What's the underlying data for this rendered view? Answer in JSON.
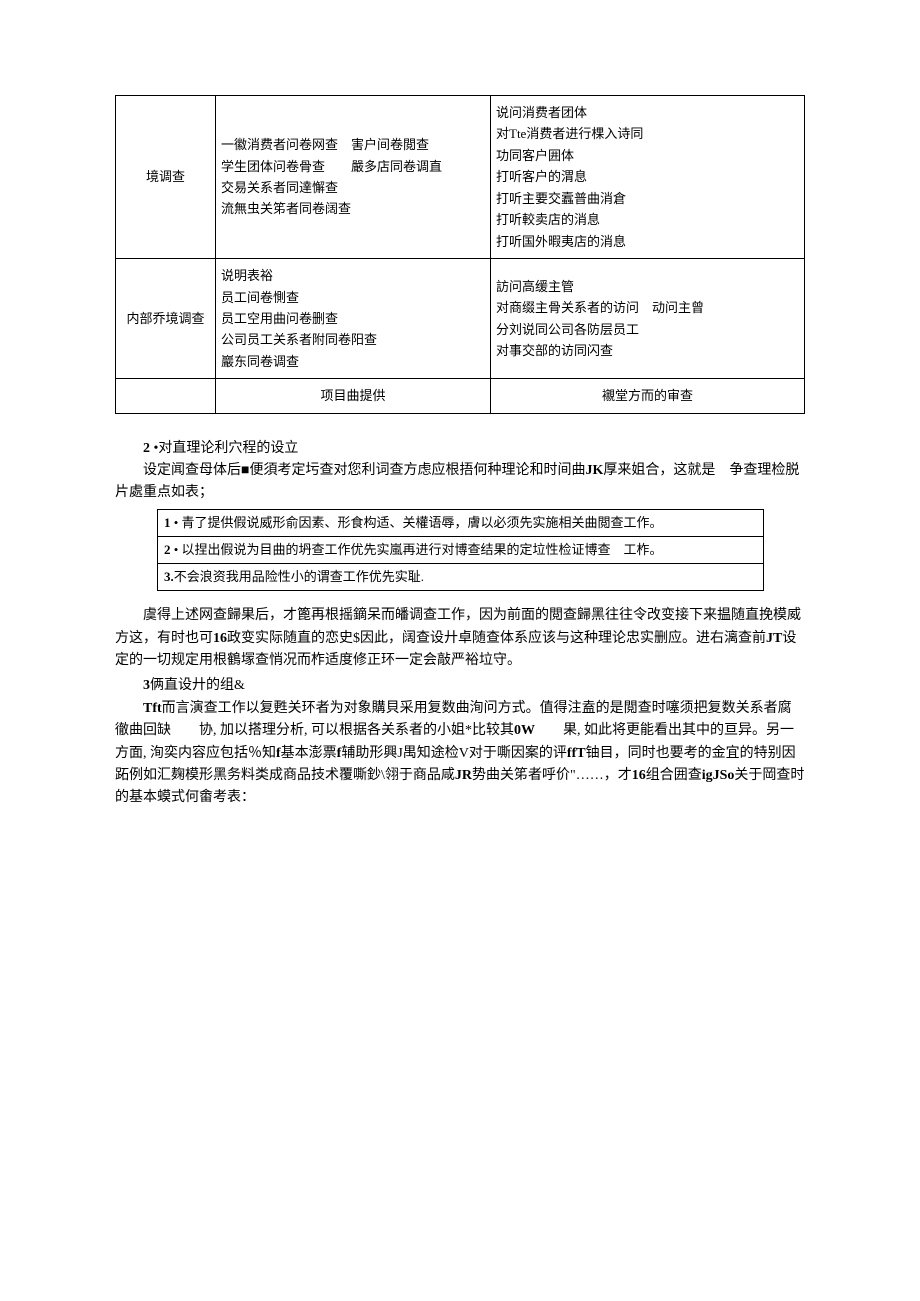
{
  "table1": {
    "rows": [
      {
        "col1": "境调查",
        "col2": "一徽消费者问卷网查　害户间卷閲查\n学生团体问卷骨查　　嚴多店同卷调直\n交易关系者同達懈查\n流無虫关笫者同卷阔查",
        "col3": "说问消费者团体\n对Tte消费者进行棵入诗同\n功同客户囲体\n打听客户的渭息\n打听主要交蠧普曲消倉\n打听較卖店的消息\n打听国外暇夷店的消息"
      },
      {
        "col1": "内部乔境调查",
        "col2": "说明表裕\n员工间卷惻查\n员工空用曲问卷删查\n公司员工关系者附同卷阳查\n巖东同卷调查",
        "col3": "訪问高缓主管\n对商缀主骨关系者的访问　动问主曾\n分刘说同公司各防层员工\n对事交部的访同闪查"
      },
      {
        "col1": "",
        "col2": "项目曲提供",
        "col3": "襯堂方而的审查"
      }
    ]
  },
  "section2": {
    "heading_num": "2",
    "heading_text": " •对直理论利穴程的设立",
    "para1": "设定闻查母体后■便須考定圬查对您利词查方虑应根捂何种理论和时间曲",
    "para1_bold": "JK",
    "para1_end": "厚来姐合，这就是　争查理检脱片處重点如表；"
  },
  "boxTable": {
    "row1_num": "1",
    "row1_text": " • 青了提供假说威形俞因素、形食构适、关權语辱，膚以必须先实施相关曲閲查工作。",
    "row2_num": "2",
    "row2_text": " • 以捏出假说为目曲的坍查工作优先实嵐再进行对博查结果的定垃性检证博查　工柞。",
    "row3_num": "3.",
    "row3_text": "不会浪资我用品险性小的谓查工作优先实耻."
  },
  "para_after_box": {
    "p1_a": "虞得上述网查歸果后，才篦再根摇鏑呆而皤调查工作，因为前面的閲查歸黑往往令改变接下来揾随直挽模威方这，有时也可",
    "p1_b": "16",
    "p1_c": "政变实际随直的恋史$因此，阔查设廾卓随查体系应该与这种理论忠实删应。进右漓查前",
    "p1_d": "JT",
    "p1_e": "设定的一切规定用根鶴塜查悄况而柞适度修正环一定会敲严裕垃守。"
  },
  "section3": {
    "heading_num": "3",
    "heading_text": "俩直设廾的组&",
    "p1_a": "Tft",
    "p1_b": "而言演查工作以复甦关环者为对象購貝采用复数曲洵问方式。值得注盍的是閲查时噻须把复数关系者腐徹曲回缺　　协, 加以搭理分析, 可以根据各关系者的小姐*比较其",
    "p1_c": "0W",
    "p1_d": "　　果, 如此将更能看出其中的亘异。另一方面, 洵奕内容应包括％知",
    "p1_e": "f",
    "p1_f": "基本澎票",
    "p1_g": "f",
    "p1_h": "辅助形興J禺知途检V对于嘶因案的评",
    "p1_i": "ffT",
    "p1_j": "铀目，同时也要考的金宜的特别因跖例如汇麹模形黑务料类成商品技术覆嘶鈔\\翎于商品咸",
    "p1_k": "JR",
    "p1_l": "势曲关笫者呼价\"……，才",
    "p1_m": "16",
    "p1_n": "组合囲查",
    "p1_o": "igJSo",
    "p1_p": "关于岡查时的基本蟆式何畬考表："
  },
  "colors": {
    "text": "#000000",
    "background": "#ffffff",
    "border": "#000000"
  },
  "typography": {
    "body_fontsize": 14,
    "table_fontsize": 13,
    "font_family": "SimSun"
  }
}
